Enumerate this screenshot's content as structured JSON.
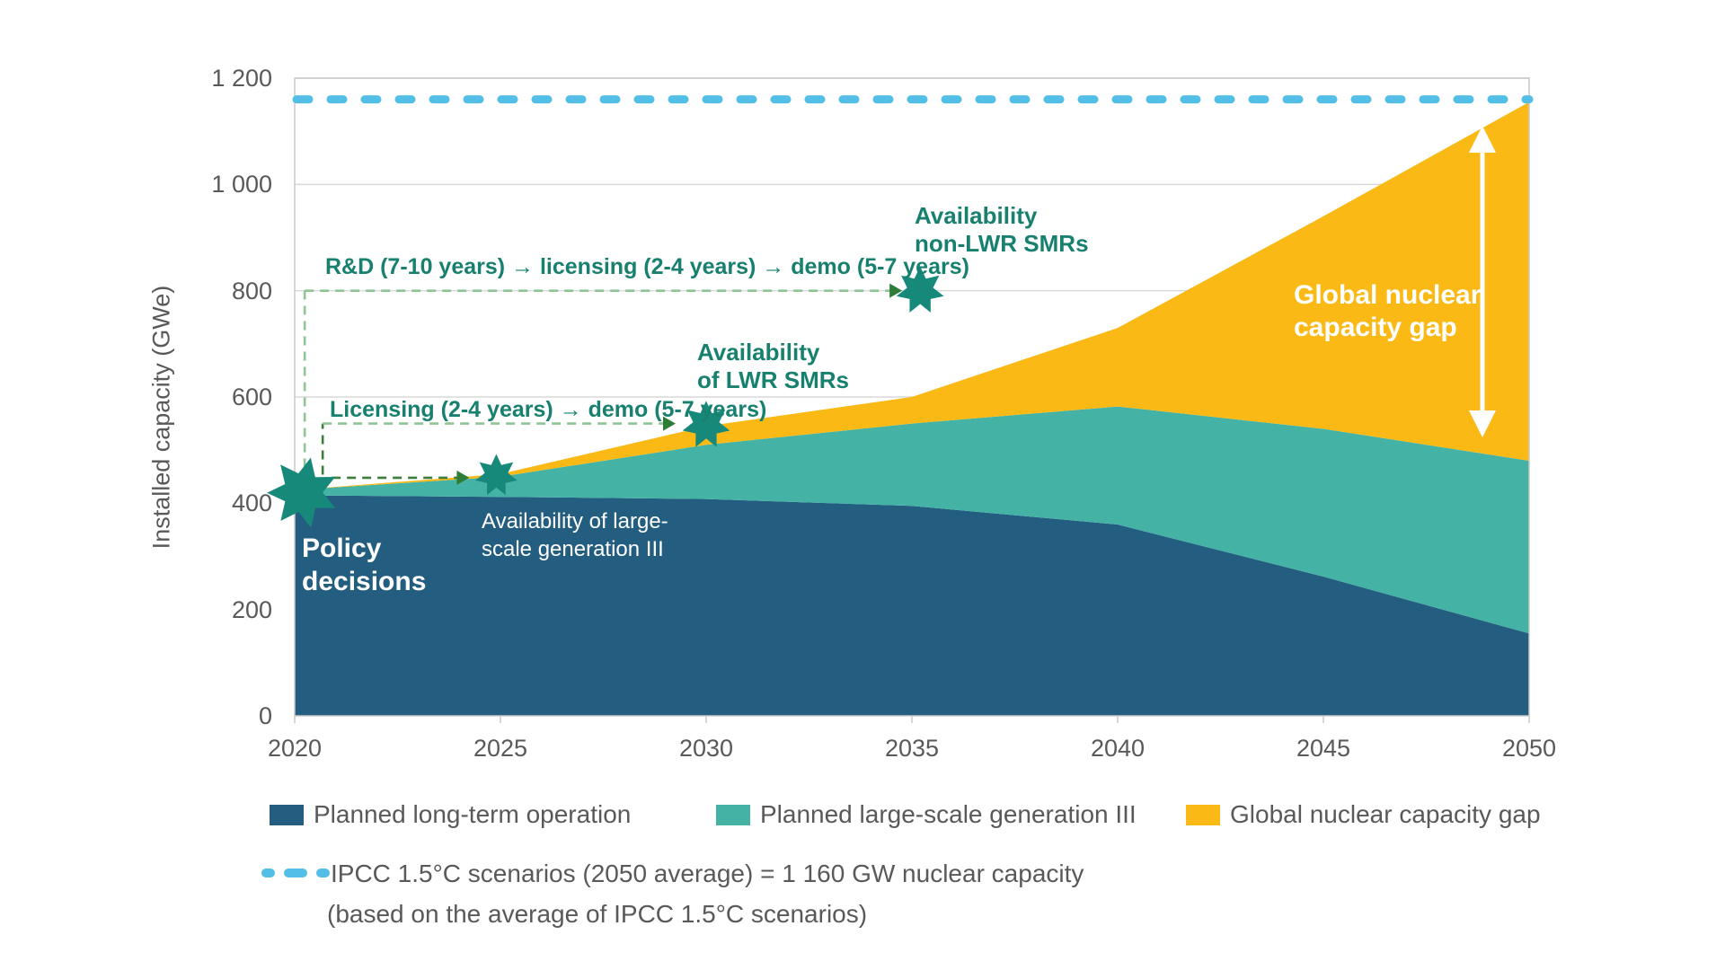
{
  "colors": {
    "navy": "#235D7F",
    "teal": "#44B3A6",
    "yellow": "#FBB916",
    "ipcc_blue": "#53BEE6",
    "annotation_green": "#17806F",
    "star_green": "#17897A",
    "dash_light_green": "#8FC494",
    "dash_dark_green": "#3E7D3E",
    "arrow_green": "#2E7D37",
    "axis_text": "#595959",
    "gridline": "#D9D9D9",
    "plot_border": "#C8C8C8",
    "white_annotation": "#FFFFFF"
  },
  "y_axis": {
    "title": "Installed capacity (GWe)",
    "tick_labels": [
      "1 200",
      "1 000",
      "800",
      "600",
      "400",
      "200",
      "0"
    ],
    "tick_values": [
      1200,
      1000,
      800,
      600,
      400,
      200,
      0
    ]
  },
  "x_axis": {
    "tick_labels": [
      "2020",
      "2025",
      "2030",
      "2035",
      "2040",
      "2045",
      "2050"
    ],
    "tick_values": [
      2020,
      2025,
      2030,
      2035,
      2040,
      2045,
      2050
    ]
  },
  "chart_data": {
    "type": "area",
    "stacked": true,
    "x": [
      2020,
      2025,
      2030,
      2035,
      2040,
      2045,
      2050
    ],
    "series": [
      {
        "name": "Planned long-term operation",
        "color": "#235D7F",
        "values": [
          415,
          412,
          408,
          395,
          360,
          262,
          155
        ]
      },
      {
        "name": "Planned large-scale generation III",
        "color": "#44B3A6",
        "values": [
          10,
          38,
          102,
          155,
          222,
          278,
          325
        ]
      },
      {
        "name": "Global nuclear capacity gap",
        "color": "#FBB916",
        "values": [
          0,
          5,
          35,
          50,
          148,
          400,
          675
        ]
      }
    ],
    "cumulative_tops": {
      "planned_long_term": [
        415,
        412,
        408,
        395,
        360,
        262,
        155
      ],
      "plus_generation_III": [
        425,
        450,
        510,
        550,
        582,
        540,
        480
      ],
      "plus_capacity_gap": [
        425,
        455,
        545,
        600,
        730,
        940,
        1155
      ]
    },
    "reference_line": {
      "label": "IPCC 1.5°C scenarios (2050 average)",
      "value": 1160,
      "color": "#53BEE6"
    },
    "markers": [
      {
        "id": "policy",
        "label": "Policy decisions",
        "year": 2020.2,
        "value": 420,
        "size": 40
      },
      {
        "id": "gen3",
        "label": "Availability of large-scale generation III",
        "year": 2024.9,
        "value": 452,
        "size": 24
      },
      {
        "id": "lwr",
        "label": "Availability of LWR SMRs",
        "year": 2030,
        "value": 547,
        "size": 27
      },
      {
        "id": "nonlwr",
        "label": "Availability non-LWR SMRs",
        "year": 2035.2,
        "value": 800,
        "size": 27
      }
    ],
    "ylim": [
      0,
      1200
    ],
    "xlabel": "",
    "ylabel": "Installed capacity (GWe)",
    "grid": "horizontal",
    "legend_position": "bottom"
  },
  "annotations": {
    "rd_text": "R&D (7-10 years)  → licensing (2-4 years) → demo (5-7 years)",
    "licensing_text": "Licensing (2-4 years) → demo (5-7 years)",
    "policy": {
      "line1": "Policy",
      "line2": "decisions"
    },
    "largescale": {
      "line1": "Availability of large-",
      "line2": "scale generation III"
    },
    "lwr": {
      "line1": "Availability",
      "line2": "of LWR SMRs"
    },
    "nonlwr": {
      "line1": "Availability",
      "line2": "non-LWR SMRs"
    },
    "gap": {
      "line1": "Global nuclear",
      "line2": "capacity gap"
    }
  },
  "legend": {
    "items": [
      {
        "label": "Planned long-term operation",
        "color": "#235D7F"
      },
      {
        "label": "Planned large-scale generation III",
        "color": "#44B3A6"
      },
      {
        "label": "Global nuclear capacity gap",
        "color": "#FBB916"
      }
    ]
  },
  "ipcc_legend": {
    "line1": "IPCC 1.5°C scenarios (2050 average) = 1 160 GW nuclear capacity",
    "line2": "(based on the average of IPCC 1.5°C scenarios)"
  }
}
